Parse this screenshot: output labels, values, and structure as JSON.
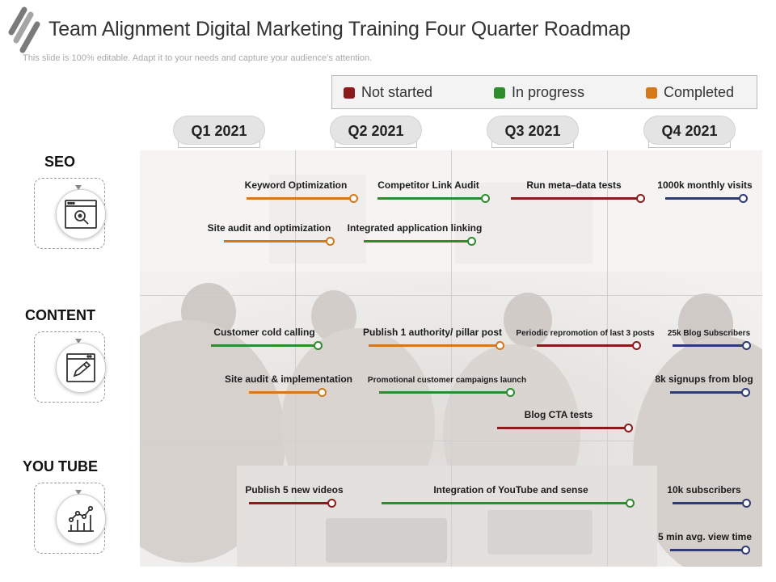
{
  "header": {
    "title": "Team Alignment Digital Marketing Training Four Quarter Roadmap",
    "subtitle": "This slide is 100% editable. Adapt it to your needs and capture your audience’s attention."
  },
  "colors": {
    "not_started": "#8b1a1a",
    "in_progress": "#2e8b2e",
    "completed": "#d4781c",
    "planned": "#2e3a74"
  },
  "legend": {
    "not_started": "Not started",
    "in_progress": "In progress",
    "completed": "Completed"
  },
  "quarters": [
    "Q1 2021",
    "Q2 2021",
    "Q3 2021",
    "Q4 2021"
  ],
  "rows": {
    "seo": {
      "title": "SEO",
      "icon": "seo-search-icon"
    },
    "content": {
      "title": "CONTENT",
      "icon": "content-edit-icon"
    },
    "youtube": {
      "title": "YOU TUBE",
      "icon": "analytics-chart-icon"
    }
  },
  "tasks": {
    "keyword_optimization": "Keyword Optimization",
    "competitor_link_audit": "Competitor Link Audit",
    "run_meta_data_tests": "Run meta–data tests",
    "monthly_visits": "1000k monthly visits",
    "site_audit_optimization": "Site audit and optimization",
    "integrated_app_linking": "Integrated application linking",
    "customer_cold_calling": "Customer cold calling",
    "publish_authority_post": "Publish 1 authority/ pillar post",
    "periodic_repromotion": "Periodic repromotion of last 3 posts",
    "blog_subscribers": "25k Blog Subscribers",
    "site_audit_implementation": "Site audit & implementation",
    "promotional_campaigns": "Promotional customer campaigns launch",
    "signups_from_blog": "8k signups from blog",
    "blog_cta_tests": "Blog CTA tests",
    "publish_new_videos": "Publish 5 new videos",
    "youtube_integration": "Integration of YouTube and sense",
    "youtube_subscribers": "10k subscribers",
    "view_time": "5 min avg.  view time"
  }
}
